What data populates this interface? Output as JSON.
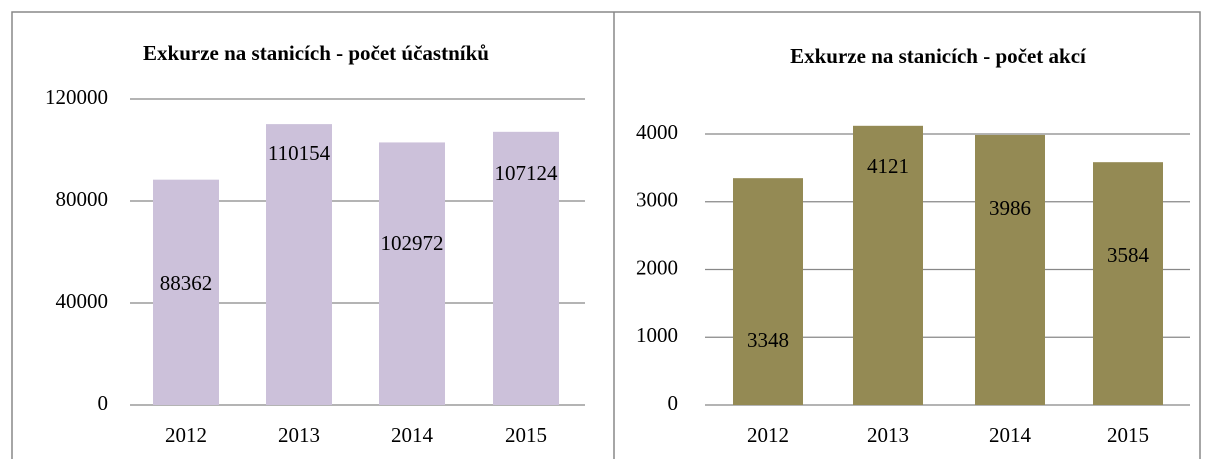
{
  "chart_data": [
    {
      "type": "bar",
      "title": "Exkurze na stanicích - počet účastníků",
      "categories": [
        "2012",
        "2013",
        "2014",
        "2015"
      ],
      "values": [
        88362,
        110154,
        102972,
        107124
      ],
      "color": "#ccc1da",
      "ylim": [
        0,
        120000
      ],
      "yticks": [
        0,
        40000,
        80000,
        120000
      ],
      "grid": true
    },
    {
      "type": "bar",
      "title": "Exkurze na stanicích - počet akcí",
      "categories": [
        "2012",
        "2013",
        "2014",
        "2015"
      ],
      "values": [
        3348,
        4121,
        3986,
        3584
      ],
      "color": "#948a54",
      "ylim": [
        0,
        4000
      ],
      "yticks": [
        0,
        1000,
        2000,
        3000,
        4000
      ],
      "grid": true
    }
  ]
}
